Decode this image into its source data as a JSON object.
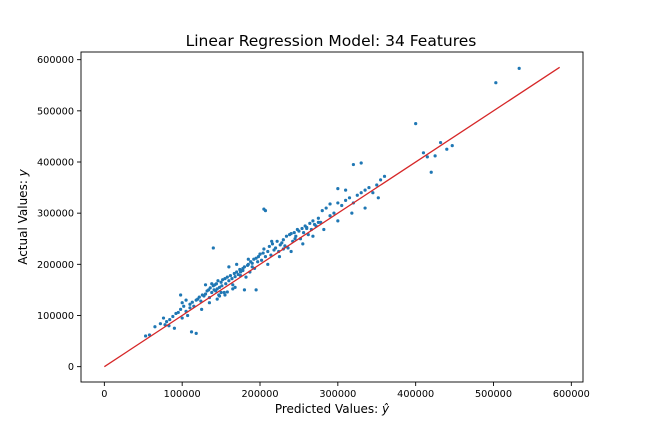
{
  "chart_data": {
    "type": "scatter",
    "title": "Linear Regression Model: 34 Features",
    "xlabel": "Predicted Values: ",
    "xlabel_symbol": "ŷ",
    "ylabel": "Actual Values: ",
    "ylabel_symbol": "y",
    "xlim": [
      -30000,
      615000
    ],
    "ylim": [
      -30000,
      615000
    ],
    "x_ticks": [
      0,
      100000,
      200000,
      300000,
      400000,
      500000,
      600000
    ],
    "y_ticks": [
      0,
      100000,
      200000,
      300000,
      400000,
      500000,
      600000
    ],
    "x_tick_labels": [
      "0",
      "100000",
      "200000",
      "300000",
      "400000",
      "500000",
      "600000"
    ],
    "y_tick_labels": [
      "0",
      "100000",
      "200000",
      "300000",
      "400000",
      "500000",
      "600000"
    ],
    "grid": false,
    "colors": {
      "points": "#1f77b4",
      "line": "#d62728"
    },
    "line": {
      "x": [
        0,
        585000
      ],
      "y": [
        0,
        585000
      ]
    },
    "points": {
      "x": [
        53000,
        58000,
        65000,
        72000,
        76000,
        80000,
        84000,
        88000,
        92000,
        95000,
        98000,
        100000,
        102000,
        105000,
        107000,
        110000,
        113000,
        115000,
        118000,
        120000,
        122000,
        124000,
        126000,
        128000,
        130000,
        132000,
        134000,
        135000,
        136000,
        138000,
        140000,
        141000,
        142000,
        143000,
        144000,
        145000,
        146000,
        147000,
        148000,
        150000,
        151000,
        152000,
        154000,
        155000,
        156000,
        158000,
        160000,
        162000,
        164000,
        165000,
        167000,
        168000,
        170000,
        172000,
        174000,
        175000,
        177000,
        178000,
        180000,
        182000,
        184000,
        185000,
        187000,
        188000,
        190000,
        192000,
        193000,
        195000,
        197000,
        198000,
        200000,
        202000,
        204000,
        205000,
        207000,
        210000,
        212000,
        214000,
        216000,
        218000,
        220000,
        222000,
        224000,
        226000,
        228000,
        230000,
        232000,
        234000,
        236000,
        238000,
        240000,
        242000,
        244000,
        246000,
        248000,
        250000,
        252000,
        254000,
        256000,
        258000,
        260000,
        262000,
        264000,
        266000,
        268000,
        270000,
        272000,
        275000,
        278000,
        280000,
        285000,
        290000,
        295000,
        300000,
        305000,
        310000,
        315000,
        320000,
        325000,
        330000,
        335000,
        340000,
        345000,
        350000,
        355000,
        360000,
        320000,
        330000,
        300000,
        310000,
        205000,
        207000,
        195000,
        180000,
        140000,
        118000,
        112000,
        90000,
        83000,
        78000,
        100000,
        105000,
        98000,
        110000,
        130000,
        150000,
        175000,
        190000,
        210000,
        225000,
        240000,
        255000,
        268000,
        282000,
        300000,
        318000,
        335000,
        352000,
        400000,
        410000,
        415000,
        420000,
        425000,
        432000,
        440000,
        447000,
        503000,
        533000,
        160000,
        170000,
        185000,
        200000,
        215000,
        230000,
        245000,
        260000,
        275000,
        290000,
        125000,
        135000,
        145000,
        155000,
        165000,
        138000,
        148000,
        158000,
        168000,
        178000
      ],
      "y": [
        60000,
        62000,
        78000,
        84000,
        95000,
        88000,
        92000,
        98000,
        104000,
        106000,
        112000,
        95000,
        118000,
        108000,
        100000,
        122000,
        126000,
        118000,
        130000,
        132000,
        136000,
        128000,
        140000,
        138000,
        142000,
        148000,
        150000,
        135000,
        154000,
        145000,
        158000,
        150000,
        160000,
        148000,
        162000,
        152000,
        168000,
        140000,
        155000,
        165000,
        158000,
        170000,
        145000,
        172000,
        162000,
        175000,
        168000,
        178000,
        172000,
        160000,
        182000,
        176000,
        185000,
        180000,
        190000,
        178000,
        188000,
        192000,
        195000,
        175000,
        198000,
        200000,
        185000,
        205000,
        202000,
        210000,
        192000,
        212000,
        205000,
        215000,
        220000,
        208000,
        222000,
        230000,
        215000,
        225000,
        235000,
        218000,
        240000,
        228000,
        232000,
        245000,
        225000,
        238000,
        242000,
        248000,
        236000,
        255000,
        232000,
        258000,
        260000,
        245000,
        262000,
        255000,
        268000,
        265000,
        250000,
        270000,
        262000,
        275000,
        272000,
        258000,
        280000,
        268000,
        285000,
        278000,
        275000,
        290000,
        282000,
        305000,
        310000,
        318000,
        300000,
        320000,
        315000,
        325000,
        330000,
        320000,
        335000,
        340000,
        345000,
        350000,
        340000,
        355000,
        365000,
        372000,
        395000,
        398000,
        348000,
        345000,
        308000,
        305000,
        150000,
        150000,
        232000,
        65000,
        68000,
        75000,
        80000,
        82000,
        125000,
        130000,
        140000,
        115000,
        160000,
        145000,
        185000,
        195000,
        200000,
        215000,
        225000,
        240000,
        255000,
        268000,
        285000,
        300000,
        310000,
        330000,
        475000,
        418000,
        410000,
        380000,
        412000,
        438000,
        425000,
        432000,
        555000,
        583000,
        195000,
        200000,
        210000,
        220000,
        245000,
        230000,
        250000,
        270000,
        282000,
        295000,
        112000,
        125000,
        132000,
        140000,
        152000,
        162000,
        138000,
        146000,
        155000,
        188000
      ]
    }
  }
}
